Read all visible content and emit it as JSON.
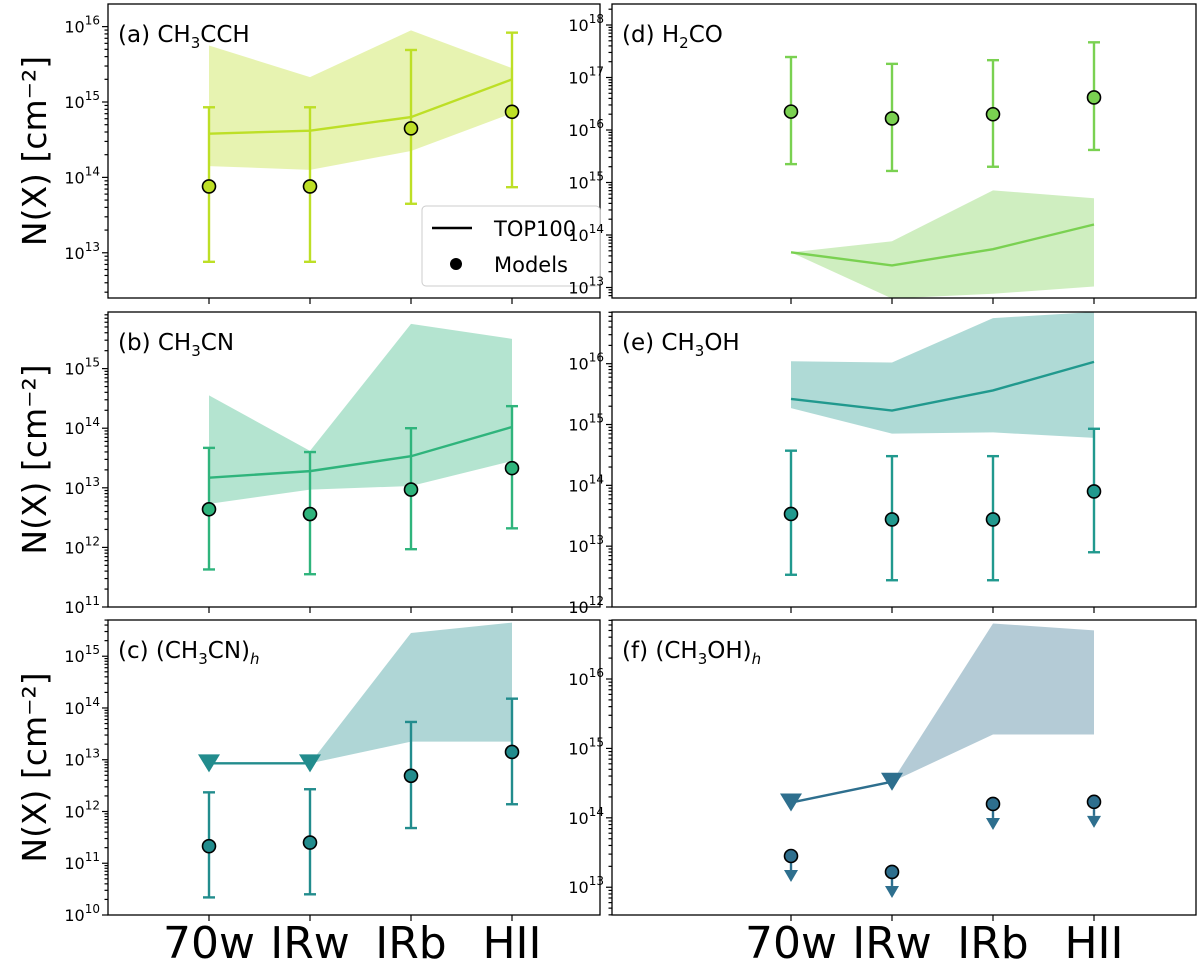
{
  "chart_data": {
    "type": "line",
    "x_categories": [
      "70w",
      "IRw",
      "IRb",
      "HII"
    ],
    "y_label": "N(X) [cm⁻²]",
    "y_scale": "log",
    "legend": {
      "placement": "lower-right of panel (a)",
      "entries": [
        {
          "label": "TOP100",
          "marker": "line"
        },
        {
          "label": "Models",
          "marker": "dot"
        }
      ]
    },
    "panels": [
      {
        "id": "a",
        "label_prefix": "(a) CH",
        "label_sub": "3",
        "label_suffix": "CCH",
        "label_italic_sub": "",
        "color": "#bddf26",
        "ylim_exp": [
          12.4,
          16.3
        ],
        "yticks_exp": [
          13,
          14,
          15,
          16
        ],
        "top100": {
          "median": [
            14.58,
            14.62,
            14.8,
            15.3
          ],
          "lower": [
            14.15,
            14.1,
            14.35,
            14.85
          ],
          "upper": [
            15.75,
            15.33,
            15.95,
            15.45
          ]
        },
        "models": {
          "values": [
            13.88,
            13.88,
            14.65,
            14.87
          ],
          "err_low": [
            12.88,
            12.88,
            13.65,
            13.87
          ],
          "err_high": [
            14.93,
            14.93,
            15.69,
            15.92
          ],
          "upper_limit": [
            false,
            false,
            false,
            false
          ]
        },
        "top100_upper_limit": [
          false,
          false,
          false,
          false
        ]
      },
      {
        "id": "b",
        "label_prefix": "(b) CH",
        "label_sub": "3",
        "label_suffix": "CN",
        "label_italic_sub": "",
        "color": "#2fb47c",
        "ylim_exp": [
          11.0,
          15.95
        ],
        "yticks_exp": [
          11,
          12,
          13,
          14,
          15
        ],
        "top100": {
          "median": [
            13.17,
            13.28,
            13.53,
            14.02
          ],
          "lower": [
            12.73,
            12.97,
            13.03,
            13.45
          ],
          "upper": [
            14.55,
            13.62,
            15.75,
            15.5
          ]
        },
        "models": {
          "values": [
            12.64,
            12.56,
            12.97,
            13.33
          ],
          "err_low": [
            11.63,
            11.55,
            11.97,
            12.32
          ],
          "err_high": [
            13.67,
            13.6,
            14.0,
            14.37
          ],
          "upper_limit": [
            false,
            false,
            false,
            false
          ]
        },
        "top100_upper_limit": [
          false,
          false,
          false,
          false
        ]
      },
      {
        "id": "c",
        "label_prefix": "(c) (CH",
        "label_sub": "3",
        "label_suffix": "CN)",
        "label_italic_sub": "h",
        "color": "#228c8d",
        "ylim_exp": [
          10.0,
          15.7
        ],
        "yticks_exp": [
          10,
          11,
          12,
          13,
          14,
          15
        ],
        "top100": {
          "median": [
            12.93,
            12.93,
            null,
            null
          ],
          "lower": [
            null,
            12.93,
            13.35,
            13.35
          ],
          "upper": [
            null,
            12.93,
            15.45,
            15.65
          ]
        },
        "models": {
          "values": [
            11.33,
            11.4,
            12.69,
            13.15
          ],
          "err_low": [
            10.34,
            10.4,
            11.68,
            12.14
          ],
          "err_high": [
            12.37,
            12.43,
            13.73,
            14.18
          ],
          "upper_limit": [
            false,
            false,
            false,
            false
          ]
        },
        "top100_upper_limit": [
          true,
          true,
          false,
          false
        ]
      },
      {
        "id": "d",
        "label_prefix": "(d) H",
        "label_sub": "2",
        "label_suffix": "CO",
        "label_italic_sub": "",
        "color": "#7ad151",
        "ylim_exp": [
          12.8,
          18.4
        ],
        "yticks_exp": [
          13,
          14,
          15,
          16,
          17,
          18
        ],
        "top100": {
          "median": [
            13.67,
            13.42,
            13.73,
            14.2
          ],
          "lower": [
            13.67,
            12.79,
            12.88,
            13.02
          ],
          "upper": [
            13.67,
            13.88,
            14.85,
            14.7
          ]
        },
        "models": {
          "values": [
            16.35,
            16.22,
            16.3,
            16.62
          ],
          "err_low": [
            15.35,
            15.22,
            15.3,
            15.62
          ],
          "err_high": [
            17.39,
            17.26,
            17.33,
            17.67
          ],
          "upper_limit": [
            false,
            false,
            false,
            false
          ]
        },
        "top100_upper_limit": [
          false,
          false,
          false,
          false
        ]
      },
      {
        "id": "e",
        "label_prefix": "(e) CH",
        "label_sub": "3",
        "label_suffix": "OH",
        "label_italic_sub": "",
        "color": "#21998e",
        "ylim_exp": [
          12.0,
          16.85
        ],
        "yticks_exp": [
          12,
          13,
          14,
          15,
          16
        ],
        "top100": {
          "median": [
            15.42,
            15.23,
            15.56,
            16.03
          ],
          "lower": [
            15.27,
            14.85,
            14.87,
            14.78
          ],
          "upper": [
            16.04,
            16.02,
            16.75,
            16.85
          ]
        },
        "models": {
          "values": [
            13.53,
            13.44,
            13.44,
            13.9
          ],
          "err_low": [
            12.53,
            12.44,
            12.44,
            12.9
          ],
          "err_high": [
            14.57,
            14.48,
            14.48,
            14.93
          ],
          "upper_limit": [
            false,
            false,
            false,
            false
          ]
        },
        "top100_upper_limit": [
          false,
          false,
          false,
          false
        ]
      },
      {
        "id": "f",
        "label_prefix": "(f) (CH",
        "label_sub": "3",
        "label_suffix": "OH)",
        "label_italic_sub": "h",
        "color": "#2e6f8e",
        "ylim_exp": [
          12.6,
          16.85
        ],
        "yticks_exp": [
          13,
          14,
          15,
          16
        ],
        "top100": {
          "median": [
            14.22,
            14.52,
            null,
            null
          ],
          "lower": [
            null,
            14.52,
            15.2,
            15.2
          ],
          "upper": [
            null,
            14.52,
            16.8,
            16.7
          ]
        },
        "models": {
          "values": [
            13.45,
            13.22,
            14.2,
            14.23
          ],
          "err_low": [
            null,
            null,
            null,
            null
          ],
          "err_high": [
            null,
            null,
            null,
            null
          ],
          "upper_limit": [
            true,
            true,
            true,
            true
          ]
        },
        "top100_upper_limit": [
          true,
          true,
          false,
          false
        ]
      }
    ]
  }
}
